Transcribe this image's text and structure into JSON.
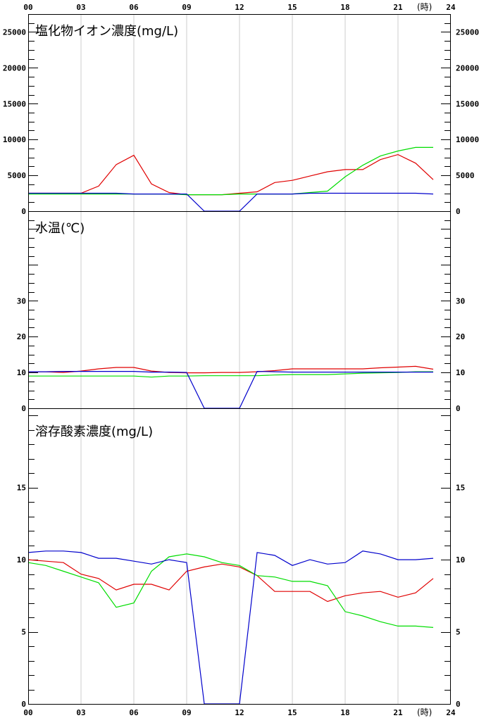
{
  "x_axis": {
    "tick_labels": [
      "00",
      "03",
      "06",
      "09",
      "12",
      "15",
      "18",
      "21",
      "24"
    ],
    "unit": "(時)",
    "range": [
      0,
      24
    ]
  },
  "colors": {
    "series_a": "#e00000",
    "series_b": "#00dd00",
    "series_c": "#0000cc",
    "grid": "#cccccc"
  },
  "chart_data": [
    {
      "type": "line",
      "title": "塩化物イオン濃度(mg/L)",
      "ylim": [
        0,
        27500
      ],
      "y_tick_labels": [
        "0",
        "5000",
        "10000",
        "15000",
        "20000",
        "25000"
      ],
      "x": [
        0,
        1,
        2,
        3,
        4,
        5,
        6,
        7,
        8,
        9,
        10,
        11,
        12,
        13,
        14,
        15,
        16,
        17,
        18,
        19,
        20,
        21,
        22,
        23
      ],
      "series": [
        {
          "color": "#e00000",
          "values": [
            2500,
            2500,
            2500,
            2500,
            3500,
            6500,
            7800,
            3800,
            2600,
            2300,
            2300,
            2300,
            2500,
            2700,
            4000,
            4300,
            4900,
            5500,
            5800,
            5800,
            7200,
            7900,
            6700,
            4400
          ]
        },
        {
          "color": "#00dd00",
          "values": [
            2400,
            2400,
            2400,
            2400,
            2400,
            2400,
            2400,
            2400,
            2400,
            2300,
            2300,
            2300,
            2400,
            2400,
            2400,
            2400,
            2600,
            2800,
            4800,
            6400,
            7700,
            8400,
            8900,
            8900
          ]
        },
        {
          "color": "#0000cc",
          "values": [
            2500,
            2500,
            2500,
            2500,
            2500,
            2500,
            2400,
            2400,
            2400,
            2400,
            0,
            0,
            0,
            2400,
            2400,
            2400,
            2500,
            2500,
            2500,
            2500,
            2500,
            2500,
            2500,
            2400
          ]
        }
      ]
    },
    {
      "type": "line",
      "title": "水温(℃)",
      "ylim": [
        0,
        55
      ],
      "y_tick_labels": [
        "0",
        "10",
        "20",
        "30"
      ],
      "x": [
        0,
        1,
        2,
        3,
        4,
        5,
        6,
        7,
        8,
        9,
        10,
        11,
        12,
        13,
        14,
        15,
        16,
        17,
        18,
        19,
        20,
        21,
        22,
        23
      ],
      "series": [
        {
          "color": "#e00000",
          "values": [
            10.2,
            10.2,
            10.0,
            10.4,
            11.0,
            11.4,
            11.4,
            10.4,
            10.0,
            9.9,
            9.9,
            10.0,
            10.0,
            10.2,
            10.5,
            11.0,
            11.0,
            11.0,
            11.0,
            11.0,
            11.3,
            11.5,
            11.7,
            10.9
          ]
        },
        {
          "color": "#00dd00",
          "values": [
            9.0,
            9.0,
            9.0,
            9.0,
            9.0,
            9.0,
            9.0,
            8.7,
            9.0,
            9.0,
            9.1,
            9.1,
            9.1,
            9.1,
            9.3,
            9.4,
            9.4,
            9.4,
            9.6,
            9.8,
            9.9,
            10.0,
            10.2,
            10.2
          ]
        },
        {
          "color": "#0000cc",
          "values": [
            10.2,
            10.2,
            10.3,
            10.3,
            10.3,
            10.3,
            10.3,
            10.1,
            10.1,
            10.0,
            0,
            0,
            0,
            10.3,
            10.2,
            10.1,
            10.1,
            10.1,
            10.1,
            10.1,
            10.1,
            10.1,
            10.1,
            10.1
          ]
        }
      ]
    },
    {
      "type": "line",
      "title": "溶存酸素濃度(mg/L)",
      "ylim": [
        0,
        20.5
      ],
      "y_tick_labels": [
        "0",
        "5",
        "10",
        "15"
      ],
      "x": [
        0,
        1,
        2,
        3,
        4,
        5,
        6,
        7,
        8,
        9,
        10,
        11,
        12,
        13,
        14,
        15,
        16,
        17,
        18,
        19,
        20,
        21,
        22,
        23
      ],
      "series": [
        {
          "color": "#e00000",
          "values": [
            10.0,
            9.9,
            9.8,
            9.0,
            8.7,
            7.9,
            8.3,
            8.3,
            7.9,
            9.2,
            9.5,
            9.7,
            9.5,
            8.9,
            7.8,
            7.8,
            7.8,
            7.1,
            7.5,
            7.7,
            7.8,
            7.4,
            7.7,
            8.7
          ]
        },
        {
          "color": "#00dd00",
          "values": [
            9.8,
            9.6,
            9.2,
            8.8,
            8.4,
            6.7,
            7.0,
            9.2,
            10.2,
            10.4,
            10.2,
            9.8,
            9.6,
            8.9,
            8.8,
            8.5,
            8.5,
            8.2,
            6.4,
            6.1,
            5.7,
            5.4,
            5.4,
            5.3
          ]
        },
        {
          "color": "#0000cc",
          "values": [
            10.5,
            10.6,
            10.6,
            10.5,
            10.1,
            10.1,
            9.9,
            9.7,
            10.0,
            9.8,
            0,
            0,
            0,
            10.5,
            10.3,
            9.6,
            10.0,
            9.7,
            9.8,
            10.6,
            10.4,
            10.0,
            10.0,
            10.1
          ]
        }
      ]
    }
  ]
}
